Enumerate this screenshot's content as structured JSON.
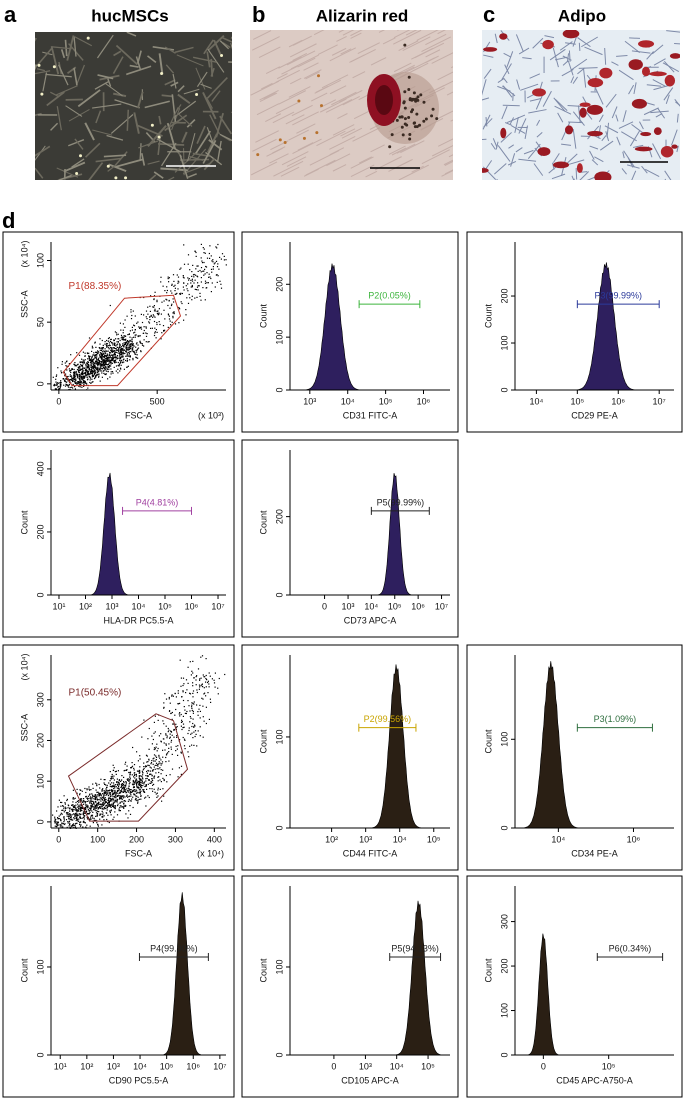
{
  "panels": [
    {
      "letter": "a",
      "title": "hucMSCs"
    },
    {
      "letter": "b",
      "title": "Alizarin red"
    },
    {
      "letter": "c",
      "title": "Adipo"
    }
  ],
  "flow": {
    "letter": "d",
    "plots": [
      {
        "type": "scatter",
        "xlabel": "FSC-A",
        "ylabel": "SSC-A",
        "x_multiplier": "(x 10³)",
        "y_multiplier": "(x 10⁴)",
        "xscale": "linear",
        "xlim": [
          -40,
          850
        ],
        "xticks": [
          0,
          500
        ],
        "ylim": [
          -5,
          115
        ],
        "yticks": [
          0,
          50,
          100
        ],
        "gate_label": "P1(88.35%)",
        "gate_color": "#c0392b"
      },
      {
        "type": "histogram",
        "xlabel": "CD31 FITC-A",
        "ylabel": "Count",
        "xscale": "log",
        "xlim": [
          300,
          5000000
        ],
        "xticks": [
          {
            "value": 1000,
            "label": "10³"
          },
          {
            "value": 10000,
            "label": "10⁴"
          },
          {
            "value": 100000,
            "label": "10⁵"
          },
          {
            "value": 1000000,
            "label": "10⁶"
          }
        ],
        "ylim": [
          0,
          280
        ],
        "yticks": [
          0,
          100,
          200
        ],
        "peak": 4000,
        "max_count": 240,
        "gate": [
          20000,
          800000
        ],
        "gate_label": "P2(0.05%)",
        "gate_color": "#3cb43c",
        "fill": "#2e1f5e"
      },
      {
        "type": "histogram",
        "xlabel": "CD29 PE-A",
        "ylabel": "Count",
        "xscale": "log",
        "xlim": [
          3000,
          23000000
        ],
        "xticks": [
          {
            "value": 10000,
            "label": "10⁴"
          },
          {
            "value": 100000,
            "label": "10⁵"
          },
          {
            "value": 1000000,
            "label": "10⁶"
          },
          {
            "value": 10000000,
            "label": "10⁷"
          }
        ],
        "ylim": [
          0,
          315
        ],
        "yticks": [
          0,
          100,
          200
        ],
        "peak": 500000,
        "max_count": 272,
        "gate": [
          100000,
          10000000
        ],
        "gate_label": "P3(99.99%)",
        "gate_color": "#2b3a9a",
        "fill": "#2e1f5e"
      },
      {
        "type": "histogram",
        "xlabel": "HLA-DR PC5.5-A",
        "ylabel": "Count",
        "xscale": "log",
        "xlim": [
          5,
          20000000
        ],
        "xticks": [
          {
            "value": 10,
            "label": "10¹"
          },
          {
            "value": 100,
            "label": "10²"
          },
          {
            "value": 1000,
            "label": "10³"
          },
          {
            "value": 10000,
            "label": "10⁴"
          },
          {
            "value": 100000,
            "label": "10⁵"
          },
          {
            "value": 1000000,
            "label": "10⁶"
          },
          {
            "value": 10000000,
            "label": "10⁷"
          }
        ],
        "ylim": [
          0,
          460
        ],
        "yticks": [
          0,
          200,
          400
        ],
        "peak": 800,
        "max_count": 390,
        "gate": [
          2500,
          1000000
        ],
        "gate_label": "P4(4.81%)",
        "gate_color": "#a040a0",
        "fill": "#2e1f5e"
      },
      {
        "type": "histogram",
        "xlabel": "CD73 APC-A",
        "ylabel": "Count",
        "xscale": "biex",
        "xlim": [
          -3000,
          23000000
        ],
        "xticks": [
          0,
          {
            "value": 1000,
            "label": "10³"
          },
          {
            "value": 10000,
            "label": "10⁴"
          },
          {
            "value": 100000,
            "label": "10⁵"
          },
          {
            "value": 1000000,
            "label": "10⁶"
          },
          {
            "value": 10000000,
            "label": "10⁷"
          }
        ],
        "ylim": [
          0,
          370
        ],
        "yticks": [
          0,
          200
        ],
        "peak": 100000,
        "max_count": 315,
        "gate": [
          10000,
          3000000
        ],
        "gate_label": "P5(99.99%)",
        "gate_color": "#222222",
        "fill": "#2e1f5e"
      },
      {
        "type": "scatter",
        "xlabel": "FSC-A",
        "ylabel": "SSC-A",
        "x_multiplier": "(x 10⁴)",
        "y_multiplier": "(x 10⁴)",
        "xscale": "linear",
        "xlim": [
          -20,
          430
        ],
        "xticks": [
          0,
          100,
          200,
          300,
          400
        ],
        "ylim": [
          -15,
          410
        ],
        "yticks": [
          0,
          100,
          200,
          300
        ],
        "gate_label": "P1(50.45%)",
        "gate_color": "#7a2a2a"
      },
      {
        "type": "histogram",
        "xlabel": "CD44 FITC-A",
        "ylabel": "Count",
        "xscale": "log",
        "xlim": [
          6,
          300000
        ],
        "xticks": [
          {
            "value": 100,
            "label": "10²"
          },
          {
            "value": 1000,
            "label": "10³"
          },
          {
            "value": 10000,
            "label": "10⁴"
          },
          {
            "value": 100000,
            "label": "10⁵"
          }
        ],
        "ylim": [
          0,
          190
        ],
        "yticks": [
          0,
          100
        ],
        "peak": 8000,
        "max_count": 180,
        "gate": [
          630,
          30000
        ],
        "gate_label": "P2(99.56%)",
        "gate_color": "#c9a400",
        "fill": "#2a1f14"
      },
      {
        "type": "histogram",
        "xlabel": "CD34 PE-A",
        "ylabel": "Count",
        "xscale": "log",
        "xlim": [
          700,
          12000000
        ],
        "xticks": [
          {
            "value": 10000,
            "label": "10⁴"
          },
          {
            "value": 1000000,
            "label": "10⁶"
          }
        ],
        "ylim": [
          0,
          195
        ],
        "yticks": [
          0,
          100
        ],
        "peak": 6300,
        "max_count": 188,
        "gate": [
          32000,
          3200000
        ],
        "gate_label": "P3(1.09%)",
        "gate_color": "#2e6e3e",
        "fill": "#2a1f14"
      },
      {
        "type": "histogram",
        "xlabel": "CD90 PC5.5-A",
        "ylabel": "Count",
        "xscale": "log",
        "xlim": [
          4.5,
          17000000
        ],
        "xticks": [
          {
            "value": 10,
            "label": "10¹"
          },
          {
            "value": 100,
            "label": "10²"
          },
          {
            "value": 1000,
            "label": "10³"
          },
          {
            "value": 10000,
            "label": "10⁴"
          },
          {
            "value": 100000,
            "label": "10⁵"
          },
          {
            "value": 1000000,
            "label": "10⁶"
          },
          {
            "value": 10000000,
            "label": "10⁷"
          }
        ],
        "ylim": [
          0,
          192
        ],
        "yticks": [
          0,
          100
        ],
        "peak": 380000,
        "max_count": 185,
        "gate": [
          9500,
          3700000
        ],
        "gate_label": "P4(99.90%)",
        "gate_color": "#222222",
        "fill": "#2a1f14"
      },
      {
        "type": "histogram",
        "xlabel": "CD105 APC-A",
        "ylabel": "Count",
        "xscale": "biex",
        "xlim": [
          -2500,
          500000
        ],
        "xticks": [
          0,
          {
            "value": 1000,
            "label": "10³"
          },
          {
            "value": 10000,
            "label": "10⁴"
          },
          {
            "value": 100000,
            "label": "10⁵"
          }
        ],
        "ylim": [
          0,
          192
        ],
        "yticks": [
          0,
          100
        ],
        "peak": 50000,
        "max_count": 176,
        "gate": [
          6000,
          250000
        ],
        "gate_label": "P5(94.13%)",
        "gate_color": "#222222",
        "fill": "#2a1f14"
      },
      {
        "type": "histogram",
        "xlabel": "CD45 APC-A750-A",
        "ylabel": "Count",
        "xscale": "biex",
        "xlim": [
          -2000,
          100000000
        ],
        "xticks": [
          0,
          {
            "value": 100000,
            "label": "10⁵"
          }
        ],
        "ylim": [
          0,
          380
        ],
        "yticks": [
          0,
          100,
          200,
          300
        ],
        "peak": 0,
        "max_count": 275,
        "gate": [
          30000,
          30000000
        ],
        "gate_label": "P6(0.34%)",
        "gate_color": "#222222",
        "fill": "#2a1f14"
      }
    ]
  }
}
